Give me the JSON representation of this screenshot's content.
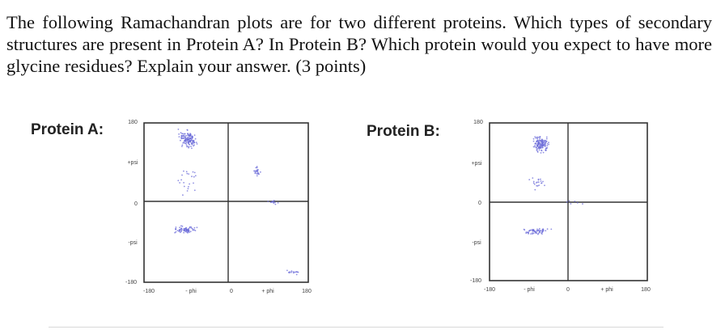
{
  "question": "The following Ramachandran plots are for two different proteins. Which types of secondary structures are present in Protein A? In Protein B? Which protein would you expect to have more glycine residues? Explain your answer. (3 points)",
  "plots": [
    {
      "label": "Protein A:",
      "y_ticks": {
        "top": "180",
        "pos": "+psi",
        "zero": "0",
        "neg": "-psi",
        "bottom": "-180"
      },
      "x_ticks": {
        "left": "-180",
        "neg": "- phi",
        "zero": "0",
        "pos": "+ phi",
        "right": "180"
      }
    },
    {
      "label": "Protein B:",
      "y_ticks": {
        "top": "180",
        "pos": "+psi",
        "zero": "0",
        "neg": "-psi",
        "bottom": "-180"
      },
      "x_ticks": {
        "left": "-180",
        "neg": "- phi",
        "zero": "0",
        "pos": "+ phi",
        "right": "180"
      }
    }
  ],
  "colors": {
    "dots": "#6a6ad8",
    "frame": "#333333"
  }
}
